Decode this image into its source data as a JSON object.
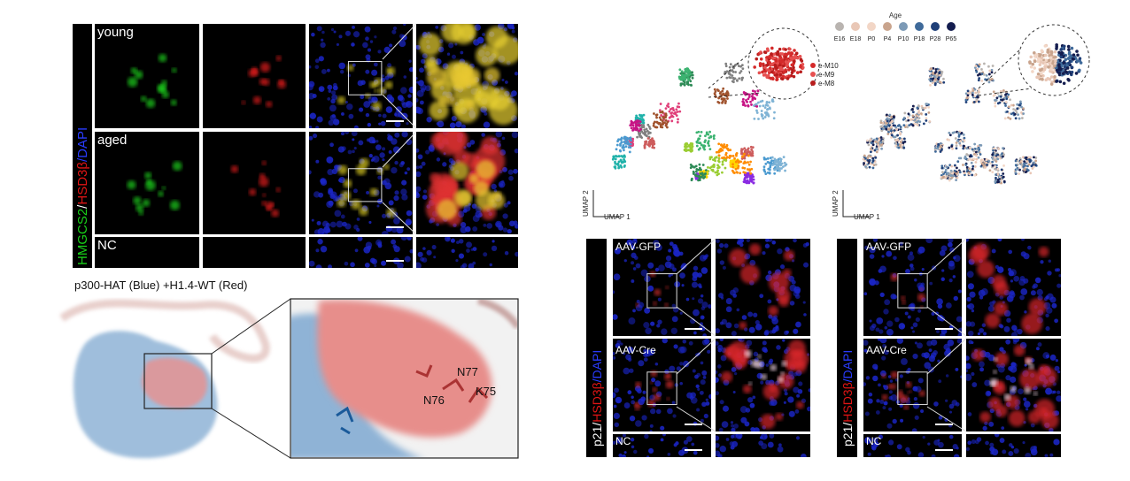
{
  "microscopy_panel": {
    "conditions": [
      "young",
      "aged",
      "NC"
    ],
    "stain_label": [
      "HMGCS2",
      "/",
      "HSD3β",
      "/DAPI"
    ]
  },
  "structure_panel": {
    "title": "p300-HAT (Blue) +H1.4-WT (Red)",
    "residues": [
      "N77",
      "N76",
      "K75"
    ]
  },
  "umap_panels": {
    "cluster_labels": [
      "e-M10",
      "e-M9",
      "e-M8"
    ],
    "legend_title": "Age",
    "ages": [
      "E16",
      "E18",
      "P0",
      "P4",
      "P10",
      "P18",
      "P28",
      "P65"
    ],
    "age_colors": [
      "#b9b4b0",
      "#e9c7b6",
      "#f2d6c6",
      "#c9a48d",
      "#7c9ab6",
      "#3f6a9a",
      "#1f3f78",
      "#141d4f"
    ],
    "plots": [
      {
        "y_label": "UMAP 2",
        "x_label": "UMAP 1"
      },
      {
        "y_label": "UMAP 2",
        "x_label": "UMAP 1"
      }
    ]
  },
  "p21_panels": [
    {
      "conditions": [
        "AAV-GFP",
        "AAV-Cre",
        "NC"
      ],
      "stain_label": [
        "p21",
        "/",
        "HSD3β",
        "/DAPI"
      ]
    },
    {
      "conditions": [
        "AAV-GFP",
        "AAV-Cre",
        "NC"
      ],
      "stain_label": [
        "p21",
        "/",
        "HSD3β",
        "/DAPI"
      ]
    }
  ]
}
